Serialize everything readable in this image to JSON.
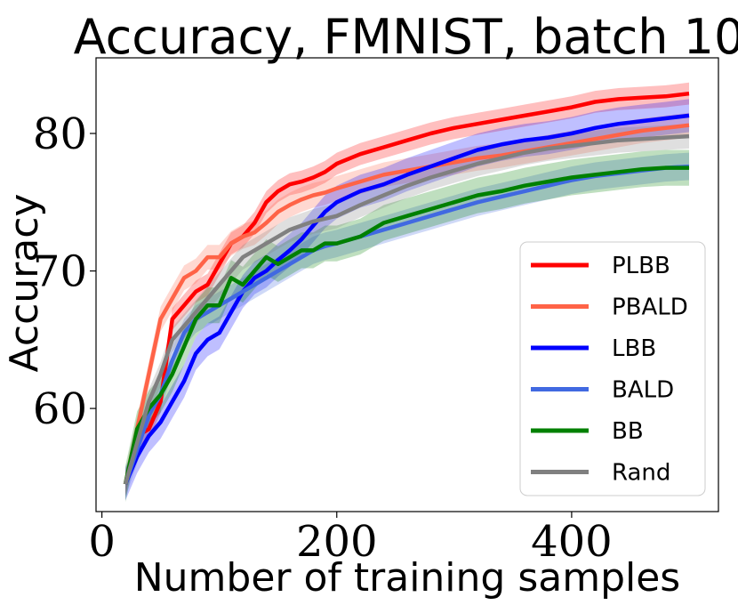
{
  "chart_data": {
    "type": "line",
    "title": "Accuracy, FMNIST, batch 10",
    "xlabel": "Number of training samples",
    "ylabel": "Accuracy",
    "xlim": [
      -5,
      525
    ],
    "ylim": [
      52.5,
      85.5
    ],
    "xticks": [
      0,
      200,
      400
    ],
    "yticks": [
      60,
      70,
      80
    ],
    "grid": false,
    "legend_position": "lower-right",
    "series": [
      {
        "name": "PLBB",
        "color": "#ff0000",
        "x": [
          20,
          30,
          40,
          50,
          60,
          70,
          80,
          90,
          100,
          110,
          120,
          130,
          140,
          150,
          160,
          170,
          180,
          190,
          200,
          220,
          240,
          260,
          280,
          300,
          320,
          340,
          360,
          380,
          400,
          420,
          440,
          460,
          480,
          500
        ],
        "y": [
          54.5,
          58.0,
          58.5,
          60.5,
          66.5,
          67.5,
          68.5,
          69.0,
          70.5,
          72.0,
          72.5,
          73.5,
          75.0,
          75.8,
          76.3,
          76.5,
          76.8,
          77.2,
          77.8,
          78.5,
          79.0,
          79.5,
          80.0,
          80.4,
          80.7,
          81.0,
          81.3,
          81.6,
          81.9,
          82.3,
          82.5,
          82.6,
          82.7,
          82.9
        ],
        "band": 0.8
      },
      {
        "name": "PBALD",
        "color": "#ff6347",
        "x": [
          20,
          30,
          40,
          50,
          60,
          70,
          80,
          90,
          100,
          110,
          120,
          130,
          140,
          150,
          160,
          170,
          180,
          190,
          200,
          220,
          240,
          260,
          280,
          300,
          320,
          340,
          360,
          380,
          400,
          420,
          440,
          460,
          480,
          500
        ],
        "y": [
          54.5,
          58.5,
          62.5,
          66.5,
          68.0,
          69.5,
          70.0,
          71.0,
          71.0,
          72.0,
          72.5,
          72.8,
          73.5,
          74.3,
          74.8,
          75.2,
          75.5,
          75.7,
          76.0,
          76.5,
          77.0,
          77.3,
          77.6,
          77.9,
          78.2,
          78.4,
          78.7,
          79.0,
          79.3,
          79.6,
          79.9,
          80.2,
          80.4,
          80.6
        ],
        "band": 0.9
      },
      {
        "name": "LBB",
        "color": "#0000ff",
        "x": [
          20,
          30,
          40,
          50,
          60,
          70,
          80,
          90,
          100,
          110,
          120,
          130,
          140,
          150,
          160,
          170,
          180,
          190,
          200,
          220,
          240,
          260,
          280,
          300,
          320,
          340,
          360,
          380,
          400,
          420,
          440,
          460,
          480,
          500
        ],
        "y": [
          54.5,
          56.5,
          58.0,
          59.0,
          60.5,
          62.0,
          64.0,
          65.0,
          65.5,
          67.0,
          68.5,
          69.5,
          70.0,
          70.8,
          71.5,
          72.3,
          73.3,
          74.3,
          75.0,
          75.8,
          76.3,
          77.0,
          77.6,
          78.2,
          78.8,
          79.2,
          79.5,
          79.7,
          80.0,
          80.4,
          80.7,
          80.9,
          81.1,
          81.3
        ],
        "band": 1.2
      },
      {
        "name": "BALD",
        "color": "#4169e1",
        "x": [
          20,
          30,
          40,
          50,
          60,
          70,
          80,
          90,
          100,
          110,
          120,
          130,
          140,
          150,
          160,
          170,
          180,
          190,
          200,
          220,
          240,
          260,
          280,
          300,
          320,
          340,
          360,
          380,
          400,
          420,
          440,
          460,
          480,
          500
        ],
        "y": [
          54.5,
          57.0,
          59.5,
          61.0,
          63.5,
          65.5,
          66.5,
          67.0,
          67.5,
          68.0,
          68.5,
          69.0,
          69.5,
          70.0,
          70.5,
          71.0,
          71.5,
          71.8,
          72.0,
          72.5,
          73.0,
          73.5,
          74.0,
          74.5,
          75.0,
          75.4,
          75.8,
          76.2,
          76.6,
          76.9,
          77.1,
          77.3,
          77.5,
          77.6
        ],
        "band": 1.0
      },
      {
        "name": "BB",
        "color": "#008000",
        "x": [
          20,
          30,
          40,
          50,
          60,
          70,
          80,
          90,
          100,
          110,
          120,
          130,
          140,
          150,
          160,
          170,
          180,
          190,
          200,
          220,
          240,
          260,
          280,
          300,
          320,
          340,
          360,
          380,
          400,
          420,
          440,
          460,
          480,
          500
        ],
        "y": [
          54.5,
          58.5,
          60.0,
          61.0,
          62.5,
          64.5,
          66.5,
          67.5,
          67.5,
          69.5,
          69.0,
          70.0,
          71.0,
          70.5,
          71.0,
          71.5,
          71.5,
          72.0,
          72.0,
          72.5,
          73.5,
          74.0,
          74.5,
          75.0,
          75.5,
          75.8,
          76.2,
          76.5,
          76.8,
          77.0,
          77.2,
          77.4,
          77.5,
          77.5
        ],
        "band": 1.3
      },
      {
        "name": "Rand",
        "color": "#808080",
        "x": [
          20,
          30,
          40,
          50,
          60,
          70,
          80,
          90,
          100,
          110,
          120,
          130,
          140,
          150,
          160,
          170,
          180,
          190,
          200,
          220,
          240,
          260,
          280,
          300,
          320,
          340,
          360,
          380,
          400,
          420,
          440,
          460,
          480,
          500
        ],
        "y": [
          54.5,
          57.5,
          60.5,
          62.5,
          65.0,
          66.0,
          67.0,
          68.0,
          69.0,
          70.0,
          71.0,
          71.5,
          72.0,
          72.5,
          73.0,
          73.3,
          73.6,
          73.8,
          74.0,
          74.8,
          75.5,
          76.2,
          76.8,
          77.3,
          77.8,
          78.2,
          78.6,
          78.9,
          79.1,
          79.3,
          79.5,
          79.6,
          79.7,
          79.8
        ],
        "band": 0.9
      }
    ]
  }
}
